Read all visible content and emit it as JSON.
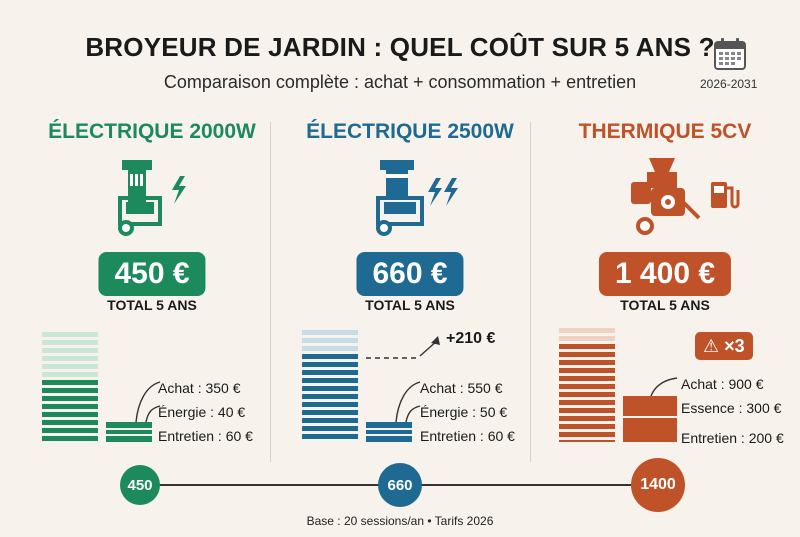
{
  "header": {
    "title": "BROYEUR DE JARDIN : QUEL COÛT SUR 5 ANS ?",
    "subtitle": "Comparaison complète : achat + consommation + entretien",
    "period": "2026-2031",
    "period_icon": "calendar-icon"
  },
  "columns": [
    {
      "name": "ÉLECTRIQUE 2000W",
      "color": "#1d8a5c",
      "total": "450 €",
      "total_label": "TOTAL 5 ANS",
      "icon": "single-lightning-icon",
      "legend": [
        "Achat : 350 €",
        "Énergie : 40 €",
        "Entretien : 60 €"
      ],
      "timeline_value": "450"
    },
    {
      "name": "ÉLECTRIQUE 2500W",
      "color": "#1e6a93",
      "total": "660 €",
      "total_label": "TOTAL 5 ANS",
      "icon": "double-lightning-icon",
      "legend": [
        "Achat : 550 €",
        "Énergie : 50 €",
        "Entretien : 60 €"
      ],
      "extra": "+210 €",
      "timeline_value": "660"
    },
    {
      "name": "THERMIQUE 5CV",
      "color": "#c0522a",
      "total": "1 400 €",
      "total_label": "TOTAL 5 ANS",
      "icon": "fuel-pump-icon",
      "legend": [
        "Achat : 900 €",
        "Essence : 300 €",
        "Entretien : 200 €"
      ],
      "badge": "×3",
      "badge_icon": "warning-icon",
      "timeline_value": "1400"
    }
  ],
  "footer": "Base : 20 sessions/an • Tarifs 2026"
}
